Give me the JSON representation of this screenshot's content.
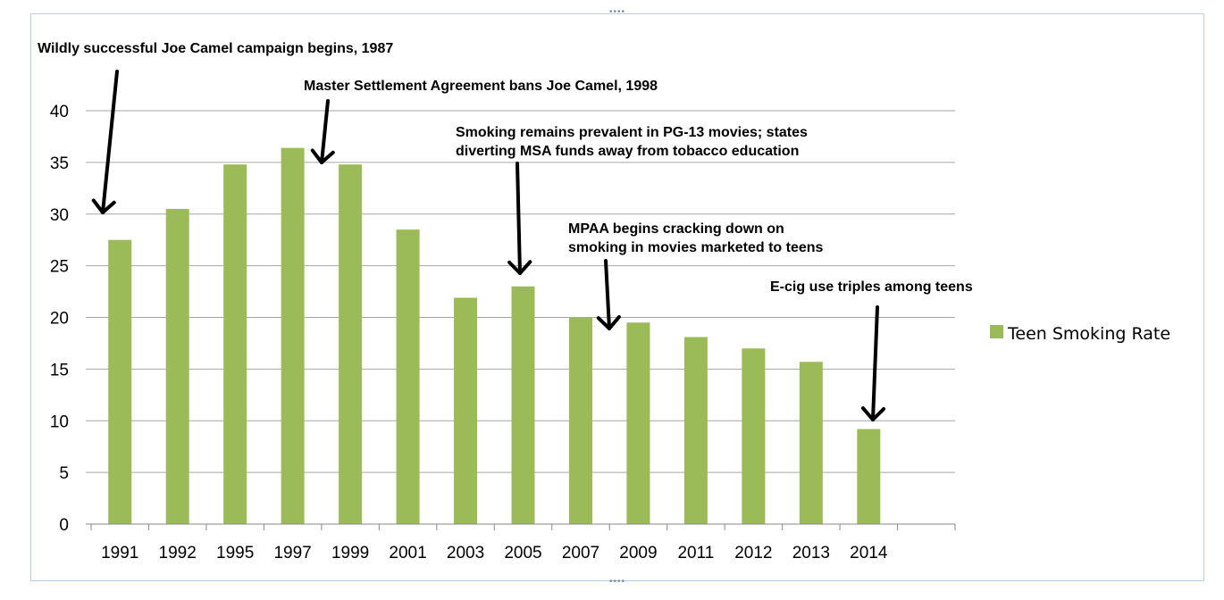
{
  "chart_data": {
    "type": "bar",
    "categories": [
      "1991",
      "1992",
      "1995",
      "1997",
      "1999",
      "2001",
      "2003",
      "2005",
      "2007",
      "2009",
      "2011",
      "2012",
      "2013",
      "2014"
    ],
    "series": [
      {
        "name": "Teen Smoking Rate",
        "color": "#9bbb59",
        "values": [
          27.5,
          30.5,
          34.8,
          36.4,
          34.8,
          28.5,
          21.9,
          23.0,
          20.0,
          19.5,
          18.1,
          17.0,
          15.7,
          9.2
        ]
      }
    ],
    "title": "",
    "xlabel": "",
    "ylabel": "",
    "ylim": [
      0,
      40
    ],
    "yticks": [
      0,
      5,
      10,
      15,
      20,
      25,
      30,
      35,
      40
    ],
    "grid": true,
    "legend_position": "right",
    "annotations": [
      {
        "lines": [
          "Wildly successful Joe Camel campaign   begins, 1987"
        ],
        "arrow_to": "1991"
      },
      {
        "lines": [
          "Master Settlement Agreement bans Joe Camel, 1998"
        ],
        "arrow_to": "between 1997 and 1999"
      },
      {
        "lines": [
          "Smoking remains prevalent in PG-13 movies; states",
          "diverting MSA funds away from tobacco education"
        ],
        "arrow_to": "2005"
      },
      {
        "lines": [
          "MPAA begins cracking down on",
          "smoking in movies marketed to teens"
        ],
        "arrow_to": "between 2007 and 2009"
      },
      {
        "lines": [
          "E-cig use triples among teens"
        ],
        "arrow_to": "2014"
      }
    ]
  }
}
